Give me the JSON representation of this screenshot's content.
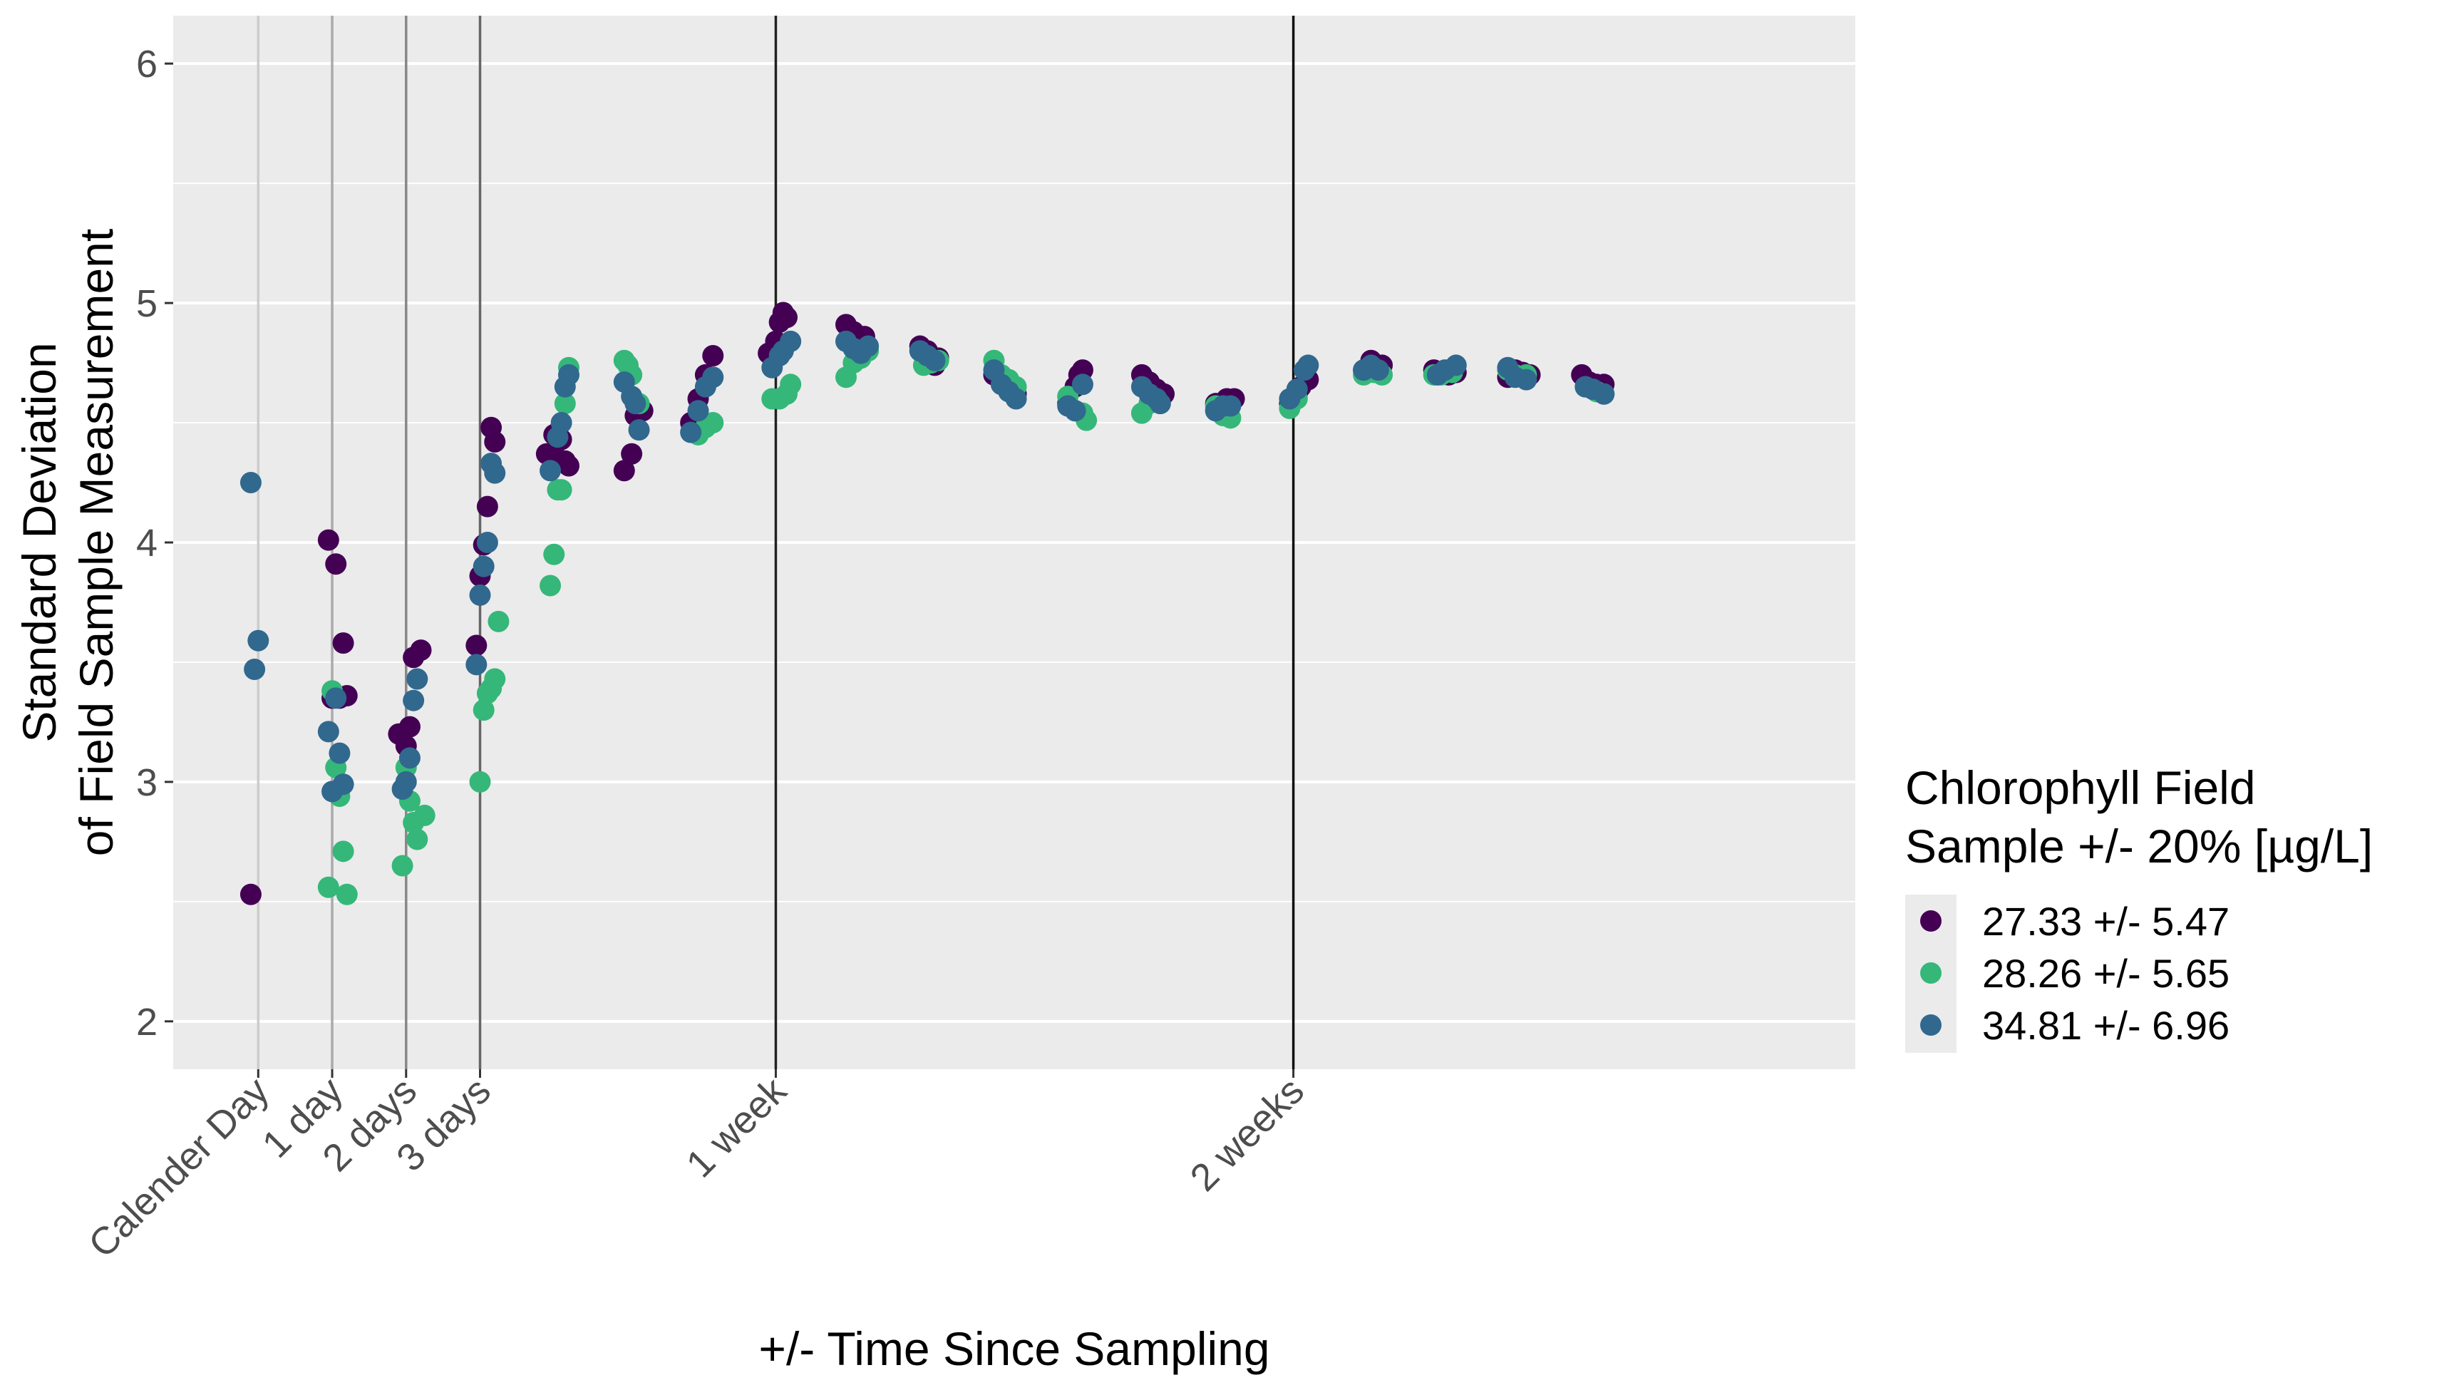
{
  "chart_data": {
    "type": "scatter",
    "xlabel": "+/- Time Since Sampling",
    "ylabel_lines": [
      "Standard Deviation",
      "of Field Sample Measurement"
    ],
    "ylim": [
      1.8,
      6.2
    ],
    "xlim": [
      -1.15,
      21.6
    ],
    "y_ticks": [
      2,
      3,
      4,
      5,
      6
    ],
    "y_tick_labels": [
      "2",
      "3",
      "4",
      "5",
      "6"
    ],
    "x_ticks": [
      0,
      1,
      2,
      3,
      7,
      14
    ],
    "x_tick_labels": [
      "Calender Day",
      "1 day",
      "2 days",
      "3 days",
      "1 week",
      "2 weeks"
    ],
    "vlines": [
      {
        "x": 0,
        "color": "#cccccc"
      },
      {
        "x": 1,
        "color": "#aaaaaa"
      },
      {
        "x": 2,
        "color": "#888888"
      },
      {
        "x": 3,
        "color": "#666666"
      },
      {
        "x": 7,
        "color": "#222222"
      },
      {
        "x": 14,
        "color": "#111111"
      }
    ],
    "grid": true,
    "legend": {
      "title_lines": [
        "Chlorophyll Field",
        "Sample +/- 20% [µg/L]"
      ],
      "position": "right"
    },
    "series": [
      {
        "name": "27.33 +/- 5.47",
        "color": "#440154",
        "points": [
          [
            -0.1,
            2.53
          ],
          [
            0.95,
            4.01
          ],
          [
            1.05,
            3.91
          ],
          [
            1.15,
            3.58
          ],
          [
            1.0,
            3.35
          ],
          [
            1.1,
            3.35
          ],
          [
            1.2,
            3.36
          ],
          [
            1.9,
            3.2
          ],
          [
            2.0,
            3.15
          ],
          [
            2.05,
            3.23
          ],
          [
            2.1,
            3.52
          ],
          [
            2.2,
            3.55
          ],
          [
            2.95,
            3.57
          ],
          [
            3.0,
            3.86
          ],
          [
            3.05,
            3.99
          ],
          [
            3.1,
            4.15
          ],
          [
            3.15,
            4.48
          ],
          [
            3.2,
            4.42
          ],
          [
            3.9,
            4.37
          ],
          [
            4.0,
            4.37
          ],
          [
            4.05,
            4.46
          ],
          [
            4.1,
            4.43
          ],
          [
            4.15,
            4.34
          ],
          [
            4.2,
            4.32
          ],
          [
            4.0,
            4.45
          ],
          [
            4.95,
            4.3
          ],
          [
            5.05,
            4.37
          ],
          [
            5.1,
            4.53
          ],
          [
            5.2,
            4.55
          ],
          [
            5.85,
            4.5
          ],
          [
            5.95,
            4.6
          ],
          [
            6.05,
            4.7
          ],
          [
            6.15,
            4.78
          ],
          [
            6.9,
            4.79
          ],
          [
            7.0,
            4.84
          ],
          [
            7.05,
            4.92
          ],
          [
            7.1,
            4.96
          ],
          [
            7.15,
            4.94
          ],
          [
            7.95,
            4.91
          ],
          [
            8.05,
            4.88
          ],
          [
            8.1,
            4.85
          ],
          [
            8.2,
            4.86
          ],
          [
            8.95,
            4.82
          ],
          [
            9.05,
            4.8
          ],
          [
            9.15,
            4.74
          ],
          [
            9.2,
            4.77
          ],
          [
            9.95,
            4.7
          ],
          [
            10.05,
            4.68
          ],
          [
            10.15,
            4.65
          ],
          [
            10.25,
            4.62
          ],
          [
            10.95,
            4.58
          ],
          [
            11.05,
            4.65
          ],
          [
            11.1,
            4.7
          ],
          [
            11.15,
            4.72
          ],
          [
            11.95,
            4.7
          ],
          [
            12.05,
            4.67
          ],
          [
            12.15,
            4.64
          ],
          [
            12.25,
            4.62
          ],
          [
            12.95,
            4.58
          ],
          [
            13.05,
            4.57
          ],
          [
            13.1,
            4.6
          ],
          [
            13.2,
            4.6
          ],
          [
            13.95,
            4.58
          ],
          [
            14.05,
            4.62
          ],
          [
            14.1,
            4.65
          ],
          [
            14.2,
            4.68
          ],
          [
            14.95,
            4.72
          ],
          [
            15.05,
            4.76
          ],
          [
            15.1,
            4.73
          ],
          [
            15.2,
            4.74
          ],
          [
            15.9,
            4.72
          ],
          [
            16.0,
            4.71
          ],
          [
            16.1,
            4.7
          ],
          [
            16.2,
            4.71
          ],
          [
            16.9,
            4.69
          ],
          [
            17.0,
            4.72
          ],
          [
            17.1,
            4.71
          ],
          [
            17.2,
            4.7
          ],
          [
            17.9,
            4.7
          ],
          [
            18.0,
            4.67
          ],
          [
            18.1,
            4.66
          ],
          [
            18.2,
            4.66
          ]
        ]
      },
      {
        "name": "28.26 +/- 5.65",
        "color": "#35b779",
        "points": [
          [
            0.95,
            2.56
          ],
          [
            1.0,
            3.38
          ],
          [
            1.05,
            3.06
          ],
          [
            1.1,
            2.94
          ],
          [
            1.15,
            2.71
          ],
          [
            1.2,
            2.53
          ],
          [
            1.95,
            2.65
          ],
          [
            2.0,
            3.06
          ],
          [
            2.05,
            2.92
          ],
          [
            2.1,
            2.83
          ],
          [
            2.15,
            2.76
          ],
          [
            2.25,
            2.86
          ],
          [
            3.0,
            3.0
          ],
          [
            3.05,
            3.3
          ],
          [
            3.1,
            3.37
          ],
          [
            3.15,
            3.39
          ],
          [
            3.2,
            3.43
          ],
          [
            3.25,
            3.67
          ],
          [
            3.95,
            3.82
          ],
          [
            4.0,
            3.95
          ],
          [
            4.05,
            4.22
          ],
          [
            4.1,
            4.22
          ],
          [
            4.15,
            4.58
          ],
          [
            4.2,
            4.73
          ],
          [
            4.95,
            4.76
          ],
          [
            5.0,
            4.74
          ],
          [
            5.05,
            4.7
          ],
          [
            5.15,
            4.58
          ],
          [
            5.95,
            4.45
          ],
          [
            6.05,
            4.48
          ],
          [
            6.15,
            4.5
          ],
          [
            6.95,
            4.6
          ],
          [
            7.05,
            4.6
          ],
          [
            7.15,
            4.62
          ],
          [
            7.2,
            4.66
          ],
          [
            7.95,
            4.69
          ],
          [
            8.05,
            4.75
          ],
          [
            8.15,
            4.77
          ],
          [
            8.25,
            4.8
          ],
          [
            9.0,
            4.74
          ],
          [
            9.1,
            4.75
          ],
          [
            9.2,
            4.76
          ],
          [
            9.95,
            4.76
          ],
          [
            10.05,
            4.7
          ],
          [
            10.15,
            4.68
          ],
          [
            10.25,
            4.65
          ],
          [
            10.95,
            4.61
          ],
          [
            11.05,
            4.55
          ],
          [
            11.15,
            4.54
          ],
          [
            11.2,
            4.51
          ],
          [
            11.95,
            4.54
          ],
          [
            12.05,
            4.58
          ],
          [
            12.15,
            4.6
          ],
          [
            12.95,
            4.57
          ],
          [
            13.05,
            4.53
          ],
          [
            13.15,
            4.52
          ],
          [
            13.95,
            4.56
          ],
          [
            14.05,
            4.6
          ],
          [
            14.95,
            4.7
          ],
          [
            15.1,
            4.71
          ],
          [
            15.2,
            4.7
          ],
          [
            15.9,
            4.7
          ],
          [
            16.0,
            4.7
          ],
          [
            16.15,
            4.71
          ],
          [
            16.9,
            4.72
          ],
          [
            17.0,
            4.7
          ],
          [
            17.15,
            4.7
          ],
          [
            17.95,
            4.65
          ],
          [
            18.1,
            4.63
          ],
          [
            18.2,
            4.62
          ]
        ]
      },
      {
        "name": "34.81 +/- 6.96",
        "color": "#31688e",
        "points": [
          [
            -0.1,
            4.25
          ],
          [
            -0.05,
            3.47
          ],
          [
            0.0,
            3.59
          ],
          [
            0.95,
            3.21
          ],
          [
            1.0,
            2.96
          ],
          [
            1.05,
            3.35
          ],
          [
            1.1,
            3.12
          ],
          [
            1.15,
            2.99
          ],
          [
            1.95,
            2.97
          ],
          [
            2.0,
            3.0
          ],
          [
            2.05,
            3.1
          ],
          [
            2.1,
            3.34
          ],
          [
            2.15,
            3.43
          ],
          [
            2.95,
            3.49
          ],
          [
            3.0,
            3.78
          ],
          [
            3.05,
            3.9
          ],
          [
            3.1,
            4.0
          ],
          [
            3.15,
            4.33
          ],
          [
            3.2,
            4.29
          ],
          [
            3.95,
            4.3
          ],
          [
            4.05,
            4.44
          ],
          [
            4.1,
            4.5
          ],
          [
            4.15,
            4.65
          ],
          [
            4.2,
            4.7
          ],
          [
            4.95,
            4.67
          ],
          [
            5.05,
            4.61
          ],
          [
            5.1,
            4.58
          ],
          [
            5.15,
            4.47
          ],
          [
            5.85,
            4.46
          ],
          [
            5.95,
            4.55
          ],
          [
            6.05,
            4.65
          ],
          [
            6.15,
            4.69
          ],
          [
            6.95,
            4.73
          ],
          [
            7.05,
            4.78
          ],
          [
            7.1,
            4.8
          ],
          [
            7.2,
            4.84
          ],
          [
            7.95,
            4.84
          ],
          [
            8.05,
            4.81
          ],
          [
            8.15,
            4.79
          ],
          [
            8.25,
            4.82
          ],
          [
            8.95,
            4.8
          ],
          [
            9.05,
            4.78
          ],
          [
            9.15,
            4.76
          ],
          [
            9.95,
            4.72
          ],
          [
            10.05,
            4.66
          ],
          [
            10.15,
            4.63
          ],
          [
            10.25,
            4.6
          ],
          [
            10.95,
            4.57
          ],
          [
            11.05,
            4.55
          ],
          [
            11.15,
            4.66
          ],
          [
            11.95,
            4.65
          ],
          [
            12.05,
            4.62
          ],
          [
            12.15,
            4.6
          ],
          [
            12.2,
            4.58
          ],
          [
            12.95,
            4.55
          ],
          [
            13.05,
            4.57
          ],
          [
            13.15,
            4.57
          ],
          [
            13.95,
            4.6
          ],
          [
            14.05,
            4.64
          ],
          [
            14.15,
            4.72
          ],
          [
            14.2,
            4.74
          ],
          [
            14.95,
            4.72
          ],
          [
            15.05,
            4.74
          ],
          [
            15.15,
            4.72
          ],
          [
            15.95,
            4.7
          ],
          [
            16.05,
            4.72
          ],
          [
            16.2,
            4.74
          ],
          [
            16.9,
            4.73
          ],
          [
            17.0,
            4.69
          ],
          [
            17.15,
            4.68
          ],
          [
            17.95,
            4.65
          ],
          [
            18.05,
            4.64
          ],
          [
            18.2,
            4.62
          ]
        ]
      }
    ]
  }
}
